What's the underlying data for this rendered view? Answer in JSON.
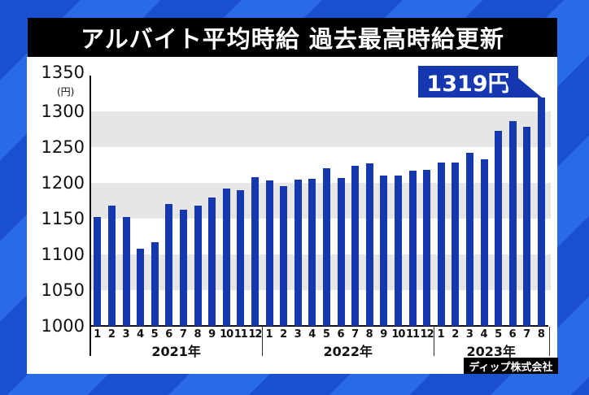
{
  "title": "アルバイト平均時給 過去最高時給更新",
  "source": "ディップ株式会社",
  "callout": "1319円",
  "y_unit": "(円)",
  "colors": {
    "bar": "#1537b0",
    "band": "#e6e6e6",
    "title_bg": "#000000",
    "background": "#1a4fd0"
  },
  "chart_data": {
    "type": "bar",
    "title": "アルバイト平均時給 過去最高時給更新",
    "xlabel": "",
    "ylabel": "(円)",
    "ylim": [
      1000,
      1350
    ],
    "yticks": [
      1000,
      1050,
      1100,
      1150,
      1200,
      1250,
      1300,
      1350
    ],
    "grid": "alternating horizontal bands",
    "groups": [
      {
        "year": "2021年",
        "months": [
          "1",
          "2",
          "3",
          "4",
          "5",
          "6",
          "7",
          "8",
          "9",
          "10",
          "11",
          "12"
        ],
        "values": [
          1152,
          1168,
          1152,
          1108,
          1117,
          1171,
          1162,
          1168,
          1179,
          1192,
          1190,
          1208
        ]
      },
      {
        "year": "2022年",
        "months": [
          "1",
          "2",
          "3",
          "4",
          "5",
          "6",
          "7",
          "8",
          "9",
          "10",
          "11",
          "12"
        ],
        "values": [
          1203,
          1196,
          1205,
          1206,
          1220,
          1207,
          1224,
          1227,
          1210,
          1210,
          1217,
          1218
        ]
      },
      {
        "year": "2023年",
        "months": [
          "1",
          "2",
          "3",
          "4",
          "5",
          "6",
          "7",
          "8"
        ],
        "values": [
          1228,
          1228,
          1242,
          1233,
          1273,
          1286,
          1278,
          1319
        ]
      }
    ],
    "annotations": [
      {
        "target": "2023-8",
        "text": "1319円"
      }
    ],
    "source": "ディップ株式会社"
  }
}
